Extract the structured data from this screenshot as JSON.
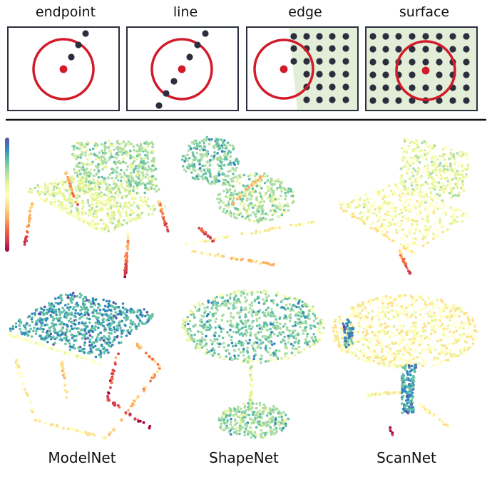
{
  "panels": [
    {
      "key": "endpoint",
      "label": "endpoint"
    },
    {
      "key": "line",
      "label": "line"
    },
    {
      "key": "edge",
      "label": "edge"
    },
    {
      "key": "surface",
      "label": "surface"
    }
  ],
  "datasets": [
    {
      "key": "modelnet",
      "label": "ModelNet"
    },
    {
      "key": "shapenet",
      "label": "ShapeNet"
    },
    {
      "key": "scannet",
      "label": "ScanNet"
    }
  ],
  "colors": {
    "circle": "#d11a2a",
    "center_point": "#d11a2a",
    "neighbor_point": "#2b2f3d",
    "region_fill": "#e3eed9",
    "panel_border": "#2b2f3d",
    "divider": "#111111",
    "colormap": [
      "#9e0142",
      "#d53e4f",
      "#f46d43",
      "#fdae61",
      "#fee08b",
      "#ffffbf",
      "#e6f598",
      "#abdda4",
      "#66c2a5",
      "#3288bd",
      "#5e4fa2"
    ]
  }
}
